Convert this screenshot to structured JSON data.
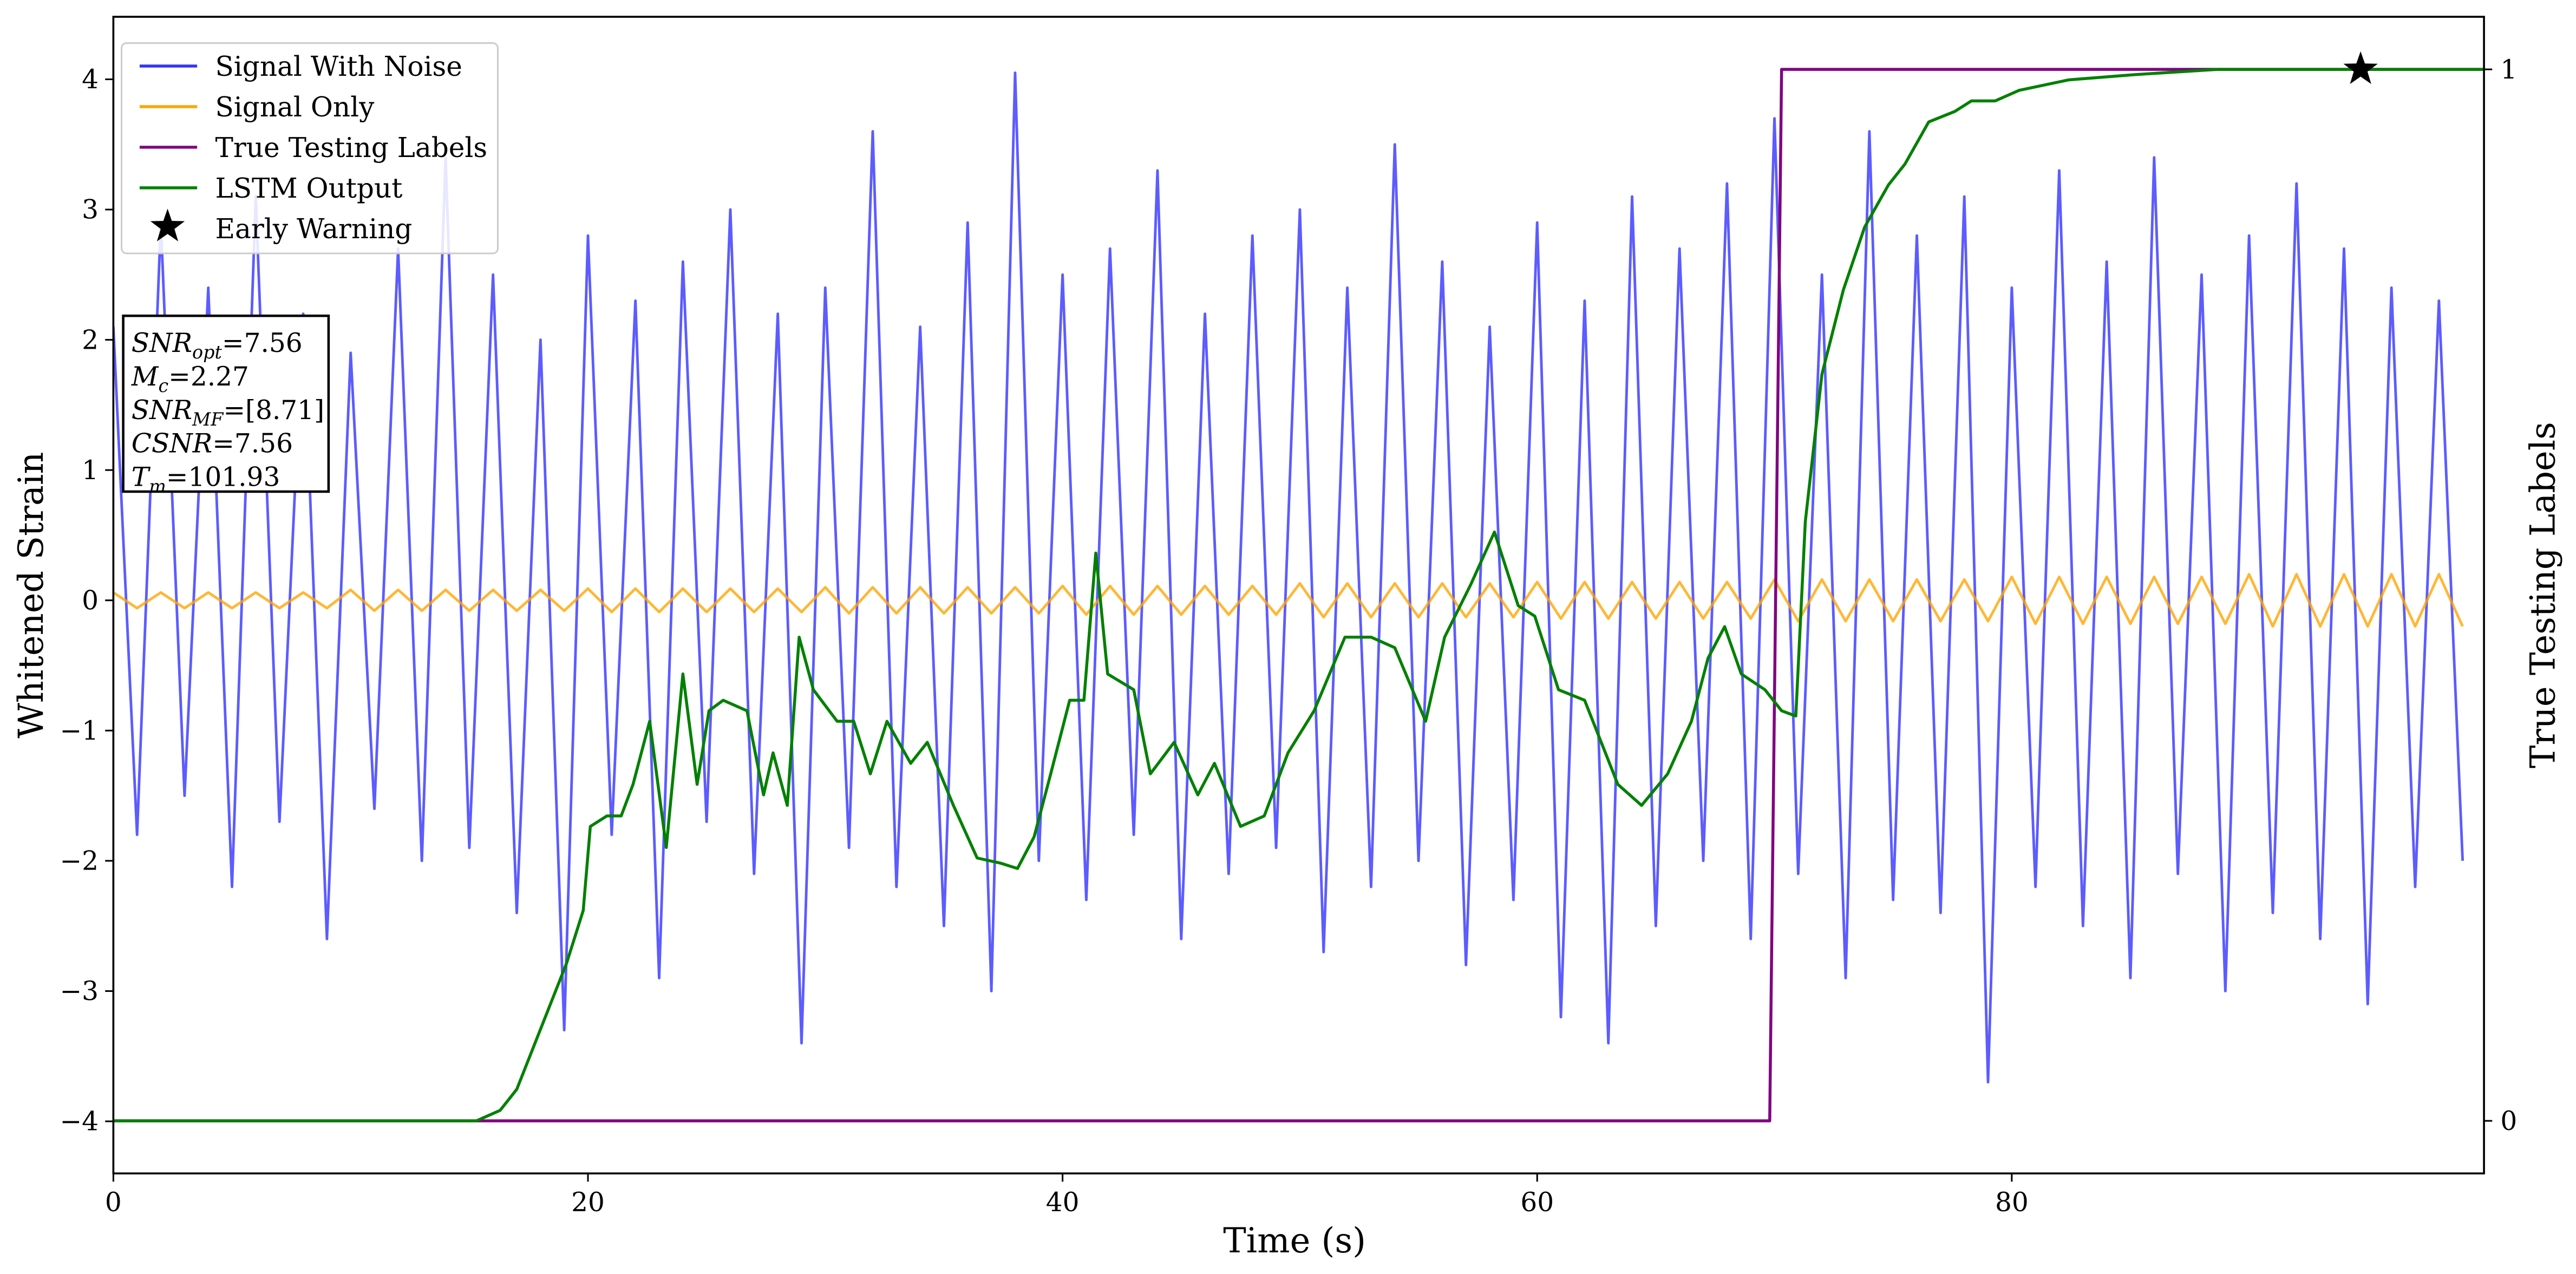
{
  "chart_data": {
    "type": "line",
    "xlabel": "Time (s)",
    "ylabel": "Whitened Strain",
    "y2label": "True Testing Labels",
    "xlim": [
      0,
      99.9
    ],
    "ylim": [
      -4.4,
      4.48
    ],
    "y2lim": [
      -0.05,
      1.05
    ],
    "xticks": [
      0,
      20,
      40,
      60,
      80
    ],
    "yticks": [
      -4,
      -3,
      -2,
      -1,
      0,
      1,
      2,
      3,
      4
    ],
    "y2ticks": [
      0,
      1
    ],
    "legend": "upper left",
    "x": [
      0,
      1,
      2,
      3,
      4,
      5,
      6,
      7,
      8,
      9,
      10,
      11,
      12,
      13,
      14,
      15,
      16,
      17,
      18,
      19,
      20,
      21,
      22,
      23,
      24,
      25,
      26,
      27,
      28,
      29,
      30,
      31,
      32,
      33,
      34,
      35,
      36,
      37,
      38,
      39,
      40,
      41,
      42,
      43,
      44,
      45,
      46,
      47,
      48,
      49,
      50,
      51,
      52,
      53,
      54,
      55,
      56,
      57,
      58,
      59,
      60,
      61,
      62,
      63,
      64,
      65,
      66,
      67,
      68,
      69,
      70,
      71,
      72,
      73,
      74,
      75,
      76,
      77,
      78,
      79,
      80,
      81,
      82,
      83,
      84,
      85,
      86,
      87,
      88,
      89,
      90,
      91,
      92,
      93,
      94,
      95,
      96,
      97,
      98,
      99
    ],
    "series": [
      {
        "name": "Signal With Noise",
        "color": "#3333ff",
        "values": [
          2.1,
          -1.8,
          2.9,
          -1.5,
          2.4,
          -2.2,
          3.1,
          -1.7,
          2.2,
          -2.6,
          1.9,
          -1.6,
          2.7,
          -2.0,
          3.4,
          -1.9,
          2.5,
          -2.4,
          2.0,
          -3.3,
          2.8,
          -1.8,
          2.3,
          -2.9,
          2.6,
          -1.7,
          3.0,
          -2.1,
          2.2,
          -3.4,
          2.4,
          -1.9,
          3.6,
          -2.2,
          2.1,
          -2.5,
          2.9,
          -3.0,
          4.05,
          -2.0,
          2.5,
          -2.3,
          2.7,
          -1.8,
          3.3,
          -2.6,
          2.2,
          -2.1,
          2.8,
          -1.9,
          3.0,
          -2.7,
          2.4,
          -2.2,
          3.5,
          -2.0,
          2.6,
          -2.8,
          2.1,
          -2.3,
          2.9,
          -3.2,
          2.3,
          -3.4,
          3.1,
          -2.5,
          2.7,
          -2.0,
          3.2,
          -2.6,
          3.7,
          -2.1,
          2.5,
          -2.9,
          3.6,
          -2.3,
          2.8,
          -2.4,
          3.1,
          -3.7,
          2.4,
          -2.2,
          3.3,
          -2.5,
          2.6,
          -2.9,
          3.4,
          -2.1,
          2.5,
          -3.0,
          2.8,
          -2.4,
          3.2,
          -2.6,
          2.7,
          -3.1,
          2.4,
          -2.2,
          2.3,
          -2.0
        ]
      },
      {
        "name": "Signal Only",
        "color": "#ffa500",
        "values": [
          0.06,
          -0.06,
          0.06,
          -0.06,
          0.06,
          -0.06,
          0.06,
          -0.06,
          0.06,
          -0.06,
          0.08,
          -0.08,
          0.08,
          -0.08,
          0.08,
          -0.08,
          0.08,
          -0.08,
          0.08,
          -0.08,
          0.09,
          -0.09,
          0.09,
          -0.09,
          0.09,
          -0.09,
          0.09,
          -0.09,
          0.09,
          -0.09,
          0.1,
          -0.1,
          0.1,
          -0.1,
          0.1,
          -0.1,
          0.1,
          -0.1,
          0.1,
          -0.1,
          0.11,
          -0.11,
          0.11,
          -0.11,
          0.11,
          -0.11,
          0.11,
          -0.11,
          0.11,
          -0.11,
          0.13,
          -0.13,
          0.13,
          -0.13,
          0.13,
          -0.13,
          0.13,
          -0.13,
          0.13,
          -0.13,
          0.14,
          -0.14,
          0.14,
          -0.14,
          0.14,
          -0.14,
          0.14,
          -0.14,
          0.14,
          -0.14,
          0.16,
          -0.16,
          0.16,
          -0.16,
          0.16,
          -0.16,
          0.16,
          -0.16,
          0.16,
          -0.16,
          0.18,
          -0.18,
          0.18,
          -0.18,
          0.18,
          -0.18,
          0.18,
          -0.18,
          0.18,
          -0.18,
          0.2,
          -0.2,
          0.2,
          -0.2,
          0.2,
          -0.2,
          0.2,
          -0.2,
          0.2,
          -0.2
        ]
      },
      {
        "name": "True Testing Labels",
        "color": "purple",
        "axis": "y2",
        "x": [
          0,
          69.8,
          70.3,
          99.9
        ],
        "values": [
          0,
          0,
          1,
          1
        ]
      },
      {
        "name": "LSTM Output",
        "color": "green",
        "axis": "y2",
        "x": [
          0,
          15.3,
          16.3,
          17.0,
          17.7,
          18.4,
          19.1,
          19.8,
          20.1,
          20.8,
          21.4,
          21.9,
          22.6,
          23.3,
          24.0,
          24.6,
          25.1,
          25.7,
          26.7,
          27.4,
          27.8,
          28.4,
          28.9,
          29.5,
          30.5,
          31.2,
          31.9,
          32.6,
          33.6,
          34.3,
          35.4,
          36.4,
          37.4,
          38.1,
          38.8,
          39.5,
          40.3,
          40.9,
          41.4,
          41.9,
          43.0,
          43.7,
          44.7,
          45.7,
          46.4,
          47.5,
          48.5,
          49.5,
          50.6,
          51.9,
          53.0,
          54.0,
          55.3,
          56.1,
          57.2,
          58.2,
          59.2,
          59.9,
          60.9,
          62.0,
          63.4,
          64.4,
          65.5,
          66.5,
          67.2,
          67.9,
          68.6,
          69.6,
          70.3,
          70.9,
          71.3,
          72.0,
          72.9,
          73.8,
          74.8,
          75.5,
          76.5,
          77.6,
          78.3,
          79.3,
          80.3,
          82.4,
          85.2,
          88.7,
          99.9
        ],
        "values": [
          0,
          0,
          0.01,
          0.03,
          0.07,
          0.11,
          0.15,
          0.2,
          0.28,
          0.29,
          0.29,
          0.32,
          0.38,
          0.26,
          0.425,
          0.32,
          0.39,
          0.4,
          0.39,
          0.31,
          0.35,
          0.3,
          0.46,
          0.41,
          0.38,
          0.38,
          0.33,
          0.38,
          0.34,
          0.36,
          0.3,
          0.25,
          0.245,
          0.24,
          0.27,
          0.33,
          0.4,
          0.4,
          0.54,
          0.425,
          0.41,
          0.33,
          0.36,
          0.31,
          0.34,
          0.28,
          0.29,
          0.35,
          0.39,
          0.46,
          0.46,
          0.45,
          0.38,
          0.46,
          0.51,
          0.56,
          0.49,
          0.48,
          0.41,
          0.4,
          0.32,
          0.3,
          0.33,
          0.38,
          0.44,
          0.47,
          0.425,
          0.41,
          0.39,
          0.385,
          0.57,
          0.71,
          0.79,
          0.85,
          0.89,
          0.91,
          0.95,
          0.96,
          0.97,
          0.97,
          0.98,
          0.99,
          0.995,
          1,
          1
        ]
      }
    ],
    "markers": [
      {
        "name": "Early Warning",
        "color": "black",
        "axis": "y2",
        "x": 94.7,
        "value": 1
      }
    ],
    "annotations": [
      {
        "main": "SNR",
        "sub": "opt",
        "rest": "=7.56"
      },
      {
        "main": "M",
        "sub": "c",
        "rest": "=2.27"
      },
      {
        "main": "SNR",
        "sub": "MF",
        "rest": "=[8.71]"
      },
      {
        "main": "CSNR",
        "rest": "=7.56"
      },
      {
        "main": "T",
        "sub": "m",
        "rest": "=101.93"
      }
    ]
  }
}
